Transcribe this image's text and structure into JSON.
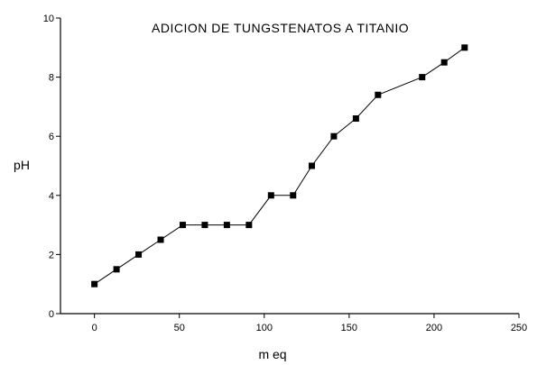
{
  "chart_data": {
    "type": "line",
    "title": "ADICION DE TUNGSTENATOS A TITANIO",
    "xlabel": "m eq",
    "ylabel": "pH",
    "xlim": [
      -20,
      250
    ],
    "ylim": [
      0,
      10
    ],
    "xticks": [
      0,
      50,
      100,
      150,
      200,
      250
    ],
    "yticks": [
      0,
      2,
      4,
      6,
      8,
      10
    ],
    "xtick_labels": [
      "0",
      "50",
      "100",
      "150",
      "200",
      "250"
    ],
    "ytick_labels": [
      "0",
      "2",
      "4",
      "6",
      "8",
      "10"
    ],
    "grid": false,
    "series": [
      {
        "marker": "square",
        "color": "#000000",
        "x": [
          0,
          13,
          26,
          39,
          52,
          65,
          78,
          91,
          104,
          117,
          128,
          141,
          154,
          167,
          193,
          206,
          218
        ],
        "y": [
          1.0,
          1.5,
          2.0,
          2.5,
          3.0,
          3.0,
          3.0,
          3.0,
          4.0,
          4.0,
          5.0,
          6.0,
          6.6,
          7.4,
          8.0,
          8.5,
          9.0
        ]
      }
    ]
  }
}
